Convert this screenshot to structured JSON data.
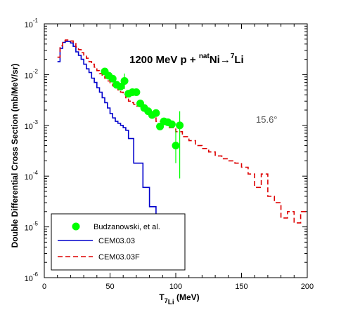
{
  "chart_data": {
    "type": "line",
    "title": "1200 MeV p + natNi → 7Li",
    "title_parts": {
      "lead": "1200 MeV p + ",
      "sup1": "nat",
      "mid": "Ni",
      "arrow": "→",
      "sup2": "7",
      "tail": "Li"
    },
    "annotation": "15.6°",
    "xlabel": {
      "main": "T",
      "sub": "7",
      "sub2": "Li",
      "unit": " (MeV)"
    },
    "ylabel": "Double Differential Cross Section (mb/MeV/sr)",
    "xlim": [
      0,
      200
    ],
    "ylim": [
      1e-06,
      0.1
    ],
    "yscale": "log",
    "x_ticks": [
      0,
      50,
      100,
      150,
      200
    ],
    "y_ticks": [
      {
        "value": 1e-06,
        "base": "10",
        "exp": "-6"
      },
      {
        "value": 1e-05,
        "base": "10",
        "exp": "-5"
      },
      {
        "value": 0.0001,
        "base": "10",
        "exp": "-4"
      },
      {
        "value": 0.001,
        "base": "10",
        "exp": "-3"
      },
      {
        "value": 0.01,
        "base": "10",
        "exp": "-2"
      },
      {
        "value": 0.1,
        "base": "10",
        "exp": "-1"
      }
    ],
    "legend_position": "bottom-left",
    "series": [
      {
        "name": "Budzanowski, et al.",
        "kind": "points",
        "color": "#00ff00",
        "points": [
          {
            "x": 46,
            "y": 0.0115
          },
          {
            "x": 49,
            "y": 0.0095
          },
          {
            "x": 52,
            "y": 0.0083
          },
          {
            "x": 55,
            "y": 0.0063
          },
          {
            "x": 58,
            "y": 0.0058
          },
          {
            "x": 61,
            "y": 0.0075,
            "err": [
              0.0052,
              0.0105
            ]
          },
          {
            "x": 64,
            "y": 0.0042
          },
          {
            "x": 67,
            "y": 0.0045
          },
          {
            "x": 70,
            "y": 0.0045
          },
          {
            "x": 73,
            "y": 0.0027
          },
          {
            "x": 76,
            "y": 0.0022
          },
          {
            "x": 79,
            "y": 0.0019
          },
          {
            "x": 82,
            "y": 0.0016
          },
          {
            "x": 85,
            "y": 0.00175
          },
          {
            "x": 88,
            "y": 0.00095
          },
          {
            "x": 91,
            "y": 0.0012
          },
          {
            "x": 94,
            "y": 0.00115
          },
          {
            "x": 97,
            "y": 0.00105
          },
          {
            "x": 100,
            "y": 0.0004,
            "err": [
              0.00018,
              0.0008
            ]
          },
          {
            "x": 103,
            "y": 0.001,
            "err": [
              9e-05,
              0.0019
            ]
          }
        ]
      },
      {
        "name": "CEM03.03",
        "kind": "histogram",
        "color": "#0000cc",
        "edges": [
          10,
          12,
          14,
          16,
          18,
          20,
          22,
          24,
          26,
          28,
          30,
          32,
          34,
          36,
          38,
          40,
          42,
          44,
          46,
          48,
          50,
          52,
          54,
          56,
          58,
          60,
          62,
          64,
          66,
          68,
          70,
          75,
          80,
          85,
          90
        ],
        "values": [
          0.018,
          0.033,
          0.043,
          0.045,
          0.045,
          0.042,
          0.036,
          0.028,
          0.024,
          0.02,
          0.016,
          0.013,
          0.011,
          0.0085,
          0.007,
          0.0055,
          0.0045,
          0.0035,
          0.0028,
          0.0022,
          0.0017,
          0.0014,
          0.0012,
          0.0011,
          0.001,
          0.0009,
          0.0008,
          0.00055,
          0.00055,
          0.00018,
          0.00018,
          6e-05,
          2.5e-05,
          1.2e-05
        ]
      },
      {
        "name": "CEM03.03F",
        "kind": "histogram",
        "color": "#dd0000",
        "edges": [
          10,
          12,
          14,
          16,
          18,
          20,
          22,
          24,
          26,
          28,
          30,
          32,
          34,
          36,
          38,
          40,
          42,
          44,
          46,
          48,
          50,
          52,
          54,
          56,
          58,
          60,
          62,
          64,
          66,
          68,
          70,
          75,
          80,
          85,
          90,
          95,
          100,
          105,
          110,
          115,
          120,
          125,
          130,
          135,
          140,
          145,
          150,
          155,
          160,
          165,
          170,
          175,
          180,
          185,
          190,
          195,
          200
        ],
        "values": [
          0.022,
          0.037,
          0.046,
          0.048,
          0.048,
          0.046,
          0.041,
          0.035,
          0.031,
          0.027,
          0.023,
          0.021,
          0.018,
          0.016,
          0.014,
          0.012,
          0.0105,
          0.0095,
          0.0085,
          0.0075,
          0.0065,
          0.006,
          0.0055,
          0.005,
          0.0045,
          0.004,
          0.0035,
          0.003,
          0.0028,
          0.0026,
          0.0024,
          0.0021,
          0.0018,
          0.0012,
          0.0011,
          0.0009,
          0.00075,
          0.0006,
          0.0005,
          0.0004,
          0.00035,
          0.0003,
          0.00025,
          0.00022,
          0.0002,
          0.00018,
          0.00015,
          0.00011,
          6e-05,
          0.00011,
          4e-05,
          3e-05,
          1.5e-05,
          2e-05,
          1.2e-05,
          2e-05
        ]
      }
    ]
  }
}
